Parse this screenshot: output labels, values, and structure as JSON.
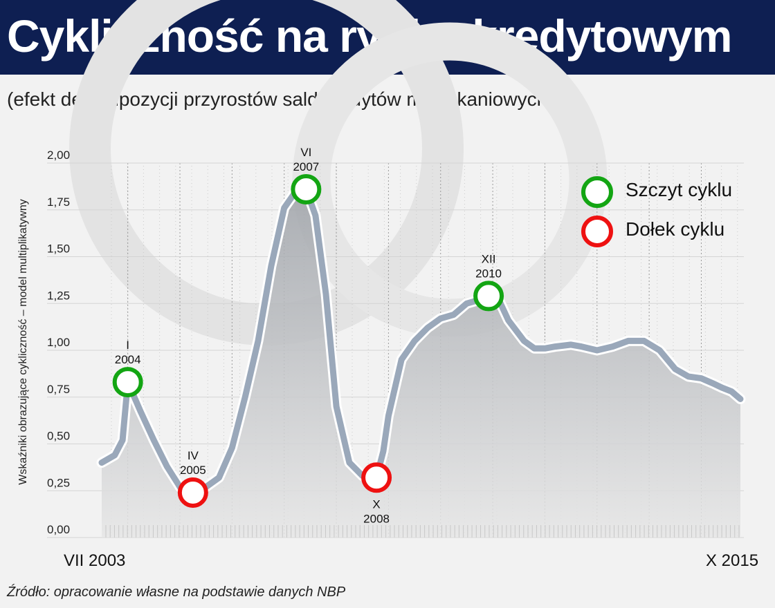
{
  "title": "Cykliczność na rynku kredytowym",
  "subtitle": "(efekt dekompozycji przyrostów sald kredytów mieszkaniowych)",
  "source": "Źródło: opracowanie własne na podstawie danych NBP",
  "colors": {
    "banner": "#0e1f52",
    "line": "#9aa8ba",
    "area": "#b4b7bb",
    "peak": "#13a513",
    "trough": "#ee1111"
  },
  "legend": {
    "peak_label": "Szczyt cyklu",
    "trough_label": "Dołek cyklu"
  },
  "chart_data": {
    "type": "area",
    "ylabel": "Wskaźniki obrazujące cykliczność – model multiplikatywny",
    "ylim": [
      0,
      2.0
    ],
    "y_ticks": [
      "2,00",
      "1,75",
      "1,50",
      "1,25",
      "1,00",
      "0,75",
      "0,50",
      "0,25",
      "0,00"
    ],
    "x_start_label": "VII 2003",
    "x_end_label": "X 2015",
    "grid": "vertical",
    "legend_position": "top-right",
    "series": [
      {
        "x": [
          2003.5,
          2003.75,
          2003.9,
          2004.0,
          2004.25,
          2004.5,
          2004.75,
          2005.0,
          2005.25,
          2005.5,
          2005.75,
          2006.0,
          2006.25,
          2006.5,
          2006.75,
          2007.0,
          2007.25,
          2007.42,
          2007.6,
          2007.8,
          2008.0,
          2008.25,
          2008.5,
          2008.65,
          2008.77,
          2008.9,
          2009.0,
          2009.25,
          2009.5,
          2009.75,
          2010.0,
          2010.25,
          2010.5,
          2010.75,
          2010.92,
          2011.1,
          2011.3,
          2011.6,
          2011.8,
          2012.0,
          2012.2,
          2012.5,
          2012.7,
          2013.0,
          2013.3,
          2013.6,
          2013.9,
          2014.2,
          2014.5,
          2014.75,
          2015.0,
          2015.25,
          2015.4,
          2015.58,
          2015.75
        ],
        "y": [
          0.4,
          0.44,
          0.52,
          0.83,
          0.67,
          0.52,
          0.38,
          0.27,
          0.24,
          0.27,
          0.32,
          0.48,
          0.75,
          1.05,
          1.45,
          1.76,
          1.86,
          1.86,
          1.72,
          1.3,
          0.7,
          0.4,
          0.33,
          0.31,
          0.32,
          0.46,
          0.65,
          0.95,
          1.05,
          1.12,
          1.17,
          1.19,
          1.25,
          1.27,
          1.29,
          1.28,
          1.16,
          1.05,
          1.01,
          1.01,
          1.02,
          1.03,
          1.02,
          1.0,
          1.02,
          1.05,
          1.05,
          1.0,
          0.9,
          0.86,
          0.85,
          0.82,
          0.8,
          0.78,
          0.74
        ]
      }
    ],
    "points": [
      {
        "kind": "peak",
        "x": 2004.0,
        "y": 0.83,
        "month": "I",
        "year": "2004",
        "label_pos": "above"
      },
      {
        "kind": "trough",
        "x": 2005.25,
        "y": 0.24,
        "month": "IV",
        "year": "2005",
        "label_pos": "above"
      },
      {
        "kind": "peak",
        "x": 2007.42,
        "y": 1.86,
        "month": "VI",
        "year": "2007",
        "label_pos": "above"
      },
      {
        "kind": "trough",
        "x": 2008.77,
        "y": 0.32,
        "month": "X",
        "year": "2008",
        "label_pos": "below"
      },
      {
        "kind": "peak",
        "x": 2010.92,
        "y": 1.29,
        "month": "XII",
        "year": "2010",
        "label_pos": "above"
      }
    ]
  }
}
